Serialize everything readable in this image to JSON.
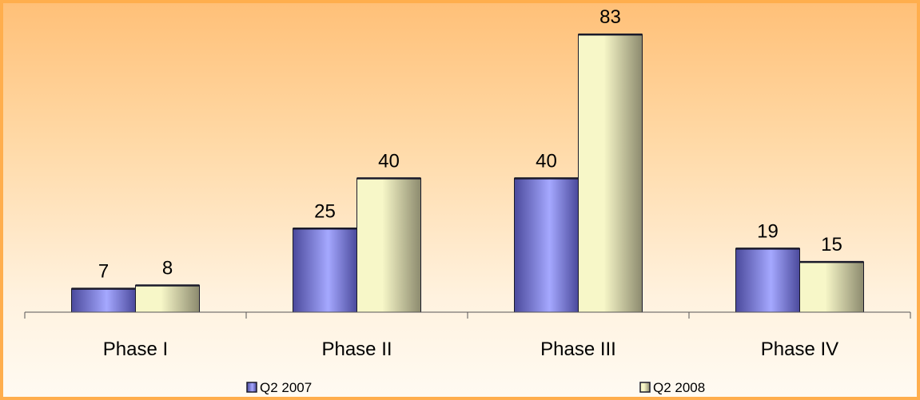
{
  "chart_data": {
    "type": "bar",
    "categories": [
      "Phase I",
      "Phase II",
      "Phase III",
      "Phase IV"
    ],
    "series": [
      {
        "name": "Q2 2007",
        "values": [
          7,
          25,
          40,
          19
        ]
      },
      {
        "name": "Q2 2008",
        "values": [
          8,
          40,
          83,
          15
        ]
      }
    ],
    "title": "",
    "xlabel": "",
    "ylabel": "",
    "ylim": [
      0,
      90
    ],
    "grid": false,
    "legend_position": "bottom",
    "data_labels": true
  },
  "colors": {
    "background_top": "#ffc078",
    "background_bottom": "#fffaf2",
    "border": "#ffae4d",
    "series_2007_light": "#a5a8ff",
    "series_2007_dark": "#4b4a9c",
    "series_2008_light": "#f7f7c8",
    "series_2008_dark": "#8c8a6e",
    "axis": "#555555",
    "bar_outline": "#1a1a2a"
  }
}
